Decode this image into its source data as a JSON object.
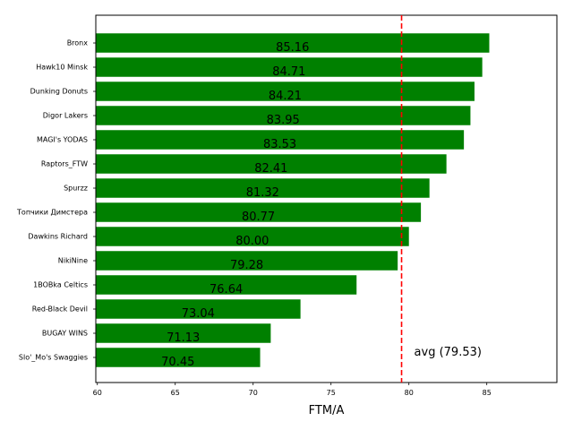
{
  "chart_data": {
    "type": "bar",
    "orientation": "horizontal",
    "title": "",
    "xlabel": "FTM/A",
    "ylabel": "",
    "xlim": [
      59.9,
      89.5
    ],
    "xticks": [
      60,
      65,
      70,
      75,
      80,
      85
    ],
    "grid": false,
    "bar_color": "#008000",
    "categories": [
      "Bronx",
      "Hawk10 Minsk",
      "Dunking Donuts",
      "Digor Lakers",
      "MAGI's YODAS",
      "Raptors_FTW",
      "Spurzz",
      "Топчики Димстера",
      "Dawkins Richard",
      "NikiNine",
      "1BOBka Celtics",
      "Red-Black Devil",
      "BUGAY WINS",
      "Slo'_Mo's Swaggies"
    ],
    "values": [
      85.16,
      84.71,
      84.21,
      83.95,
      83.53,
      82.41,
      81.32,
      80.77,
      80.0,
      79.28,
      76.64,
      73.04,
      71.13,
      70.45
    ],
    "value_labels": [
      "85.16",
      "84.71",
      "84.21",
      "83.95",
      "83.53",
      "82.41",
      "81.32",
      "80.77",
      "80.00",
      "79.28",
      "76.64",
      "73.04",
      "71.13",
      "70.45"
    ],
    "average": {
      "value": 79.53,
      "label": "avg (79.53)",
      "color": "#ff0000",
      "style": "dashed"
    }
  }
}
